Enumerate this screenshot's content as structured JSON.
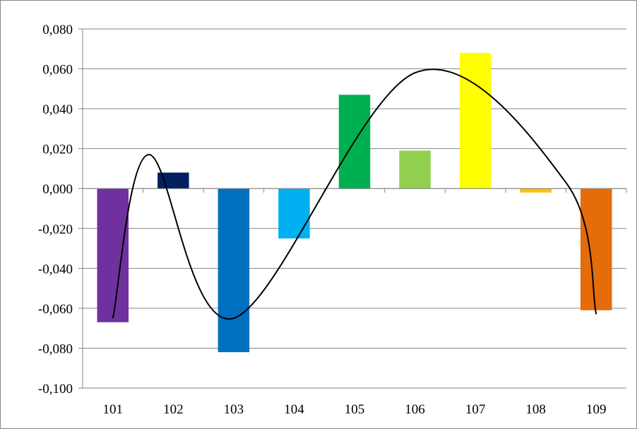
{
  "chart_data": {
    "type": "bar",
    "title": "",
    "xlabel": "",
    "ylabel": "",
    "categories": [
      "101",
      "102",
      "103",
      "104",
      "105",
      "106",
      "107",
      "108",
      "109"
    ],
    "values": [
      -0.067,
      0.008,
      -0.082,
      -0.025,
      0.047,
      0.019,
      0.068,
      -0.002,
      -0.061
    ],
    "bar_colors": [
      "#7030a0",
      "#002060",
      "#0070c0",
      "#00b0f0",
      "#00b050",
      "#92d050",
      "#ffff00",
      "#ffc000",
      "#e46c0a"
    ],
    "ylim": [
      -0.1,
      0.08
    ],
    "yticks": [
      0.08,
      0.06,
      0.04,
      0.02,
      0.0,
      -0.02,
      -0.04,
      -0.06,
      -0.08,
      -0.1
    ],
    "ytick_labels": [
      "0,080",
      "0,060",
      "0,040",
      "0,020",
      "0,000",
      "-0,020",
      "-0,040",
      "-0,060",
      "-0,080",
      "-0,100"
    ],
    "grid": true,
    "legend": "none",
    "trend_line": {
      "type": "smoothed",
      "color": "#000000",
      "points": [
        {
          "x": "101",
          "y": -0.065
        },
        {
          "x": "101.6",
          "y": 0.017
        },
        {
          "x": "103",
          "y": -0.065
        },
        {
          "x": "106",
          "y": 0.058
        },
        {
          "x": "108.5",
          "y": 0.003
        },
        {
          "x": "109",
          "y": -0.063
        }
      ]
    }
  }
}
